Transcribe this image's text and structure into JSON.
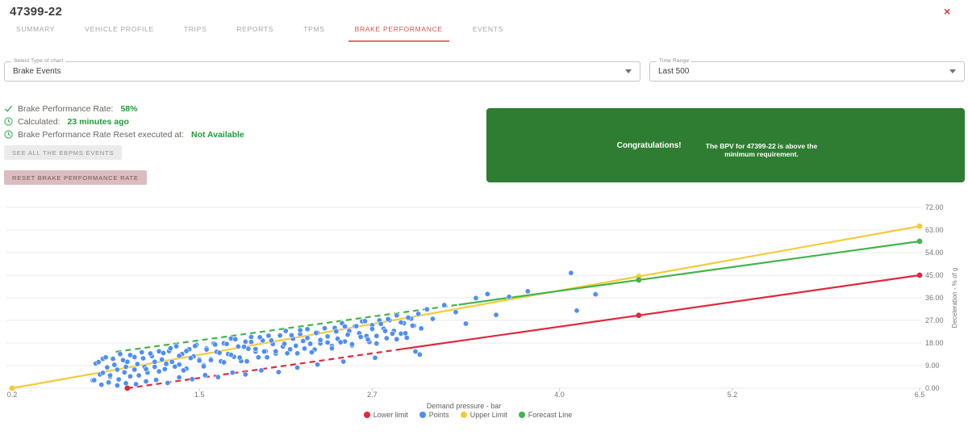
{
  "window": {
    "title": "47399-22",
    "close_icon": "×"
  },
  "tabs": [
    {
      "label": "SUMMARY",
      "active": false
    },
    {
      "label": "VEHICLE PROFILE",
      "active": false
    },
    {
      "label": "TRIPS",
      "active": false
    },
    {
      "label": "REPORTS",
      "active": false
    },
    {
      "label": "TPMS",
      "active": false
    },
    {
      "label": "BRAKE PERFORMANCE",
      "active": true
    },
    {
      "label": "EVENTS",
      "active": false
    }
  ],
  "filters": {
    "chart_type": {
      "label": "Select Type of chart",
      "value": "Brake Events"
    },
    "time_range": {
      "label": "Time Range",
      "value": "Last 500"
    }
  },
  "status": {
    "rows": [
      {
        "icon": "check-icon",
        "label": "Brake Performance Rate:",
        "value": "58%"
      },
      {
        "icon": "clock-icon",
        "label": "Calculated:",
        "value": "23 minutes ago"
      },
      {
        "icon": "clock-icon",
        "label": "Brake Performance Rate Reset executed at:",
        "value": "Not Available"
      }
    ],
    "see_events_button": "SEE ALL THE EBPMS EVENTS",
    "reset_button": "RESET BRAKE PERFORMANCE RATE"
  },
  "banner": {
    "title": "Congratulations!",
    "message": "The BPV for 47399-22 is above the minimum requirement.",
    "background": "#2e7d32"
  },
  "chart_data": {
    "type": "scatter",
    "xlabel": "Demand pressure - bar",
    "ylabel": "Deceleration - % of g",
    "xlim": [
      0.2,
      6.5
    ],
    "ylim": [
      0,
      72
    ],
    "grid": true,
    "legend_position": "bottom",
    "x_ticks": [
      [
        0.2,
        "0.2"
      ],
      [
        1.5,
        "1.5"
      ],
      [
        2.7,
        "2.7"
      ],
      [
        4.0,
        "4.0"
      ],
      [
        5.2,
        "5.2"
      ],
      [
        6.5,
        "6.5"
      ]
    ],
    "y_ticks": [
      [
        0,
        "0.00"
      ],
      [
        9,
        "9.00"
      ],
      [
        18,
        "18.00"
      ],
      [
        27,
        "27.00"
      ],
      [
        36,
        "36.00"
      ],
      [
        45,
        "45.00"
      ],
      [
        54,
        "54.00"
      ],
      [
        63,
        "63.00"
      ],
      [
        72,
        "72.00"
      ]
    ],
    "legend": [
      {
        "name": "Lower limit",
        "color": "#e0293c"
      },
      {
        "name": "Points",
        "color": "#4f8ef5"
      },
      {
        "name": "Upper Limit",
        "color": "#f5ca38"
      },
      {
        "name": "Forecast Line",
        "color": "#41b54a"
      }
    ],
    "lines": [
      {
        "name": "Lower limit",
        "color": "#e0293c",
        "points": [
          [
            1.0,
            0
          ],
          [
            4.55,
            29.0
          ],
          [
            6.5,
            45.0
          ]
        ],
        "dash_until": 2.9,
        "markers": [
          [
            1.0,
            0
          ],
          [
            4.55,
            29.0
          ],
          [
            6.5,
            45.0
          ]
        ]
      },
      {
        "name": "Upper Limit",
        "color": "#f5ca38",
        "points": [
          [
            0.2,
            0
          ],
          [
            4.55,
            44.5
          ],
          [
            6.5,
            64.5
          ]
        ],
        "dash_until": null,
        "markers": [
          [
            0.2,
            0
          ],
          [
            4.55,
            44.5
          ],
          [
            6.5,
            64.5
          ]
        ]
      },
      {
        "name": "Forecast Line",
        "color": "#41b54a",
        "points": [
          [
            0.92,
            14.5
          ],
          [
            4.55,
            43.1
          ],
          [
            6.5,
            58.5
          ]
        ],
        "dash_until": 3.3,
        "markers": [
          [
            4.55,
            43.1
          ],
          [
            6.5,
            58.5
          ]
        ]
      }
    ],
    "points_color": "#4f8ef5",
    "points": [
      [
        0.76,
        3.1
      ],
      [
        0.78,
        9.8
      ],
      [
        0.81,
        5.5
      ],
      [
        0.83,
        11.7
      ],
      [
        0.86,
        8.3
      ],
      [
        0.88,
        4.5
      ],
      [
        0.9,
        11.7
      ],
      [
        0.93,
        7.4
      ],
      [
        0.95,
        13.6
      ],
      [
        0.98,
        6.3
      ],
      [
        1.0,
        10.5
      ],
      [
        1.02,
        4.7
      ],
      [
        1.05,
        12.4
      ],
      [
        1.07,
        9.6
      ],
      [
        1.1,
        14.3
      ],
      [
        1.12,
        8.5
      ],
      [
        1.14,
        6.2
      ],
      [
        1.17,
        12.8
      ],
      [
        1.19,
        8.5
      ],
      [
        1.22,
        14.7
      ],
      [
        1.24,
        11.4
      ],
      [
        1.26,
        7.6
      ],
      [
        1.29,
        14.8
      ],
      [
        1.31,
        10.5
      ],
      [
        1.34,
        16.7
      ],
      [
        1.36,
        9.4
      ],
      [
        1.38,
        13.6
      ],
      [
        1.41,
        7.8
      ],
      [
        1.43,
        15.5
      ],
      [
        1.46,
        12.7
      ],
      [
        1.48,
        17.3
      ],
      [
        1.5,
        11.5
      ],
      [
        1.53,
        9.2
      ],
      [
        1.55,
        15.9
      ],
      [
        1.58,
        11.6
      ],
      [
        1.6,
        17.8
      ],
      [
        1.62,
        14.5
      ],
      [
        1.65,
        10.7
      ],
      [
        1.67,
        17.9
      ],
      [
        1.7,
        13.6
      ],
      [
        1.72,
        19.8
      ],
      [
        1.74,
        12.5
      ],
      [
        1.77,
        16.6
      ],
      [
        1.79,
        10.8
      ],
      [
        1.82,
        18.5
      ],
      [
        1.84,
        15.7
      ],
      [
        1.86,
        20.4
      ],
      [
        1.89,
        14.6
      ],
      [
        1.91,
        12.3
      ],
      [
        1.94,
        19.0
      ],
      [
        1.96,
        14.7
      ],
      [
        1.98,
        20.9
      ],
      [
        2.01,
        17.6
      ],
      [
        2.03,
        13.8
      ],
      [
        2.06,
        21.0
      ],
      [
        2.08,
        16.6
      ],
      [
        2.1,
        22.8
      ],
      [
        2.13,
        15.5
      ],
      [
        2.15,
        19.7
      ],
      [
        2.18,
        13.9
      ],
      [
        2.2,
        21.6
      ],
      [
        2.22,
        18.8
      ],
      [
        2.25,
        23.5
      ],
      [
        2.27,
        17.7
      ],
      [
        2.3,
        15.4
      ],
      [
        2.32,
        22.1
      ],
      [
        2.34,
        17.8
      ],
      [
        2.37,
        23.9
      ],
      [
        2.39,
        20.6
      ],
      [
        2.42,
        16.8
      ],
      [
        2.44,
        24.0
      ],
      [
        2.46,
        19.7
      ],
      [
        2.49,
        25.9
      ],
      [
        2.51,
        18.6
      ],
      [
        2.54,
        22.8
      ],
      [
        2.56,
        17.0
      ],
      [
        2.58,
        24.7
      ],
      [
        2.61,
        21.9
      ],
      [
        2.63,
        26.6
      ],
      [
        2.66,
        20.8
      ],
      [
        2.68,
        18.4
      ],
      [
        2.7,
        25.1
      ],
      [
        2.73,
        20.8
      ],
      [
        2.75,
        27.0
      ],
      [
        2.78,
        23.7
      ],
      [
        2.8,
        19.9
      ],
      [
        2.82,
        27.1
      ],
      [
        2.85,
        22.8
      ],
      [
        2.87,
        29.0
      ],
      [
        2.9,
        21.7
      ],
      [
        2.92,
        25.9
      ],
      [
        2.94,
        20.1
      ],
      [
        2.97,
        27.7
      ],
      [
        2.99,
        24.9
      ],
      [
        3.02,
        29.6
      ],
      [
        3.04,
        23.8
      ],
      [
        0.77,
        3.2
      ],
      [
        0.8,
        10.4
      ],
      [
        0.83,
        6.1
      ],
      [
        0.85,
        12.3
      ],
      [
        0.88,
        5.1
      ],
      [
        0.91,
        9.3
      ],
      [
        0.94,
        3.5
      ],
      [
        0.97,
        11.2
      ],
      [
        0.99,
        8.5
      ],
      [
        1.02,
        13.2
      ],
      [
        1.05,
        7.4
      ],
      [
        1.08,
        5.1
      ],
      [
        1.11,
        11.9
      ],
      [
        1.13,
        7.6
      ],
      [
        1.16,
        13.8
      ],
      [
        1.19,
        10.5
      ],
      [
        1.22,
        6.7
      ],
      [
        1.25,
        14.0
      ],
      [
        1.27,
        9.7
      ],
      [
        1.3,
        15.9
      ],
      [
        1.33,
        8.6
      ],
      [
        1.36,
        12.9
      ],
      [
        1.39,
        7.1
      ],
      [
        1.41,
        14.8
      ],
      [
        1.44,
        12.0
      ],
      [
        1.47,
        16.8
      ],
      [
        1.5,
        11.0
      ],
      [
        1.53,
        8.7
      ],
      [
        1.55,
        15.4
      ],
      [
        1.58,
        11.2
      ],
      [
        1.61,
        17.4
      ],
      [
        1.64,
        14.1
      ],
      [
        1.67,
        10.3
      ],
      [
        1.69,
        17.6
      ],
      [
        1.72,
        13.3
      ],
      [
        1.75,
        19.5
      ],
      [
        1.78,
        12.2
      ],
      [
        1.81,
        16.5
      ],
      [
        1.83,
        10.7
      ],
      [
        1.86,
        18.4
      ],
      [
        1.89,
        15.6
      ],
      [
        1.92,
        20.3
      ],
      [
        1.95,
        14.6
      ],
      [
        1.97,
        12.3
      ],
      [
        2.0,
        19.0
      ],
      [
        2.03,
        14.7
      ],
      [
        2.06,
        21.0
      ],
      [
        2.09,
        17.7
      ],
      [
        2.11,
        13.9
      ],
      [
        2.14,
        21.1
      ],
      [
        2.17,
        16.9
      ],
      [
        2.2,
        23.1
      ],
      [
        2.23,
        15.8
      ],
      [
        2.25,
        20.0
      ],
      [
        2.28,
        14.3
      ],
      [
        2.31,
        22.0
      ],
      [
        2.34,
        19.2
      ],
      [
        2.37,
        23.9
      ],
      [
        2.39,
        18.2
      ],
      [
        2.42,
        15.9
      ],
      [
        2.45,
        22.6
      ],
      [
        2.48,
        18.3
      ],
      [
        2.51,
        24.6
      ],
      [
        2.53,
        21.3
      ],
      [
        2.56,
        17.5
      ],
      [
        2.59,
        24.7
      ],
      [
        2.62,
        20.4
      ],
      [
        2.65,
        26.7
      ],
      [
        2.67,
        19.4
      ],
      [
        2.7,
        23.6
      ],
      [
        2.73,
        17.8
      ],
      [
        2.76,
        25.6
      ],
      [
        2.79,
        22.8
      ],
      [
        2.81,
        27.5
      ],
      [
        2.84,
        21.7
      ],
      [
        2.87,
        19.5
      ],
      [
        2.9,
        26.2
      ],
      [
        2.93,
        21.9
      ],
      [
        2.95,
        28.1
      ],
      [
        2.98,
        24.9
      ],
      [
        0.82,
        1.4
      ],
      [
        0.87,
        2.3
      ],
      [
        0.93,
        1.1
      ],
      [
        0.99,
        2.0
      ],
      [
        1.06,
        1.6
      ],
      [
        1.13,
        2.7
      ],
      [
        1.2,
        3.3
      ],
      [
        1.28,
        2.1
      ],
      [
        1.36,
        4.3
      ],
      [
        1.45,
        3.6
      ],
      [
        1.54,
        5.2
      ],
      [
        1.63,
        4.4
      ],
      [
        1.73,
        6.2
      ],
      [
        1.82,
        5.5
      ],
      [
        1.93,
        7.1
      ],
      [
        2.05,
        6.4
      ],
      [
        2.18,
        8.2
      ],
      [
        2.32,
        9.4
      ],
      [
        2.5,
        10.6
      ],
      [
        2.72,
        12.1
      ],
      [
        3.0,
        14.6
      ],
      [
        3.03,
        13.4
      ],
      [
        3.08,
        31.4
      ],
      [
        3.12,
        27.6
      ],
      [
        3.2,
        33.1
      ],
      [
        3.28,
        30.3
      ],
      [
        3.35,
        25.7
      ],
      [
        3.42,
        35.9
      ],
      [
        3.5,
        37.5
      ],
      [
        3.56,
        29.2
      ],
      [
        3.65,
        36.4
      ],
      [
        3.78,
        38.6
      ],
      [
        4.08,
        45.9
      ],
      [
        4.12,
        30.9
      ],
      [
        4.25,
        37.4
      ]
    ]
  }
}
